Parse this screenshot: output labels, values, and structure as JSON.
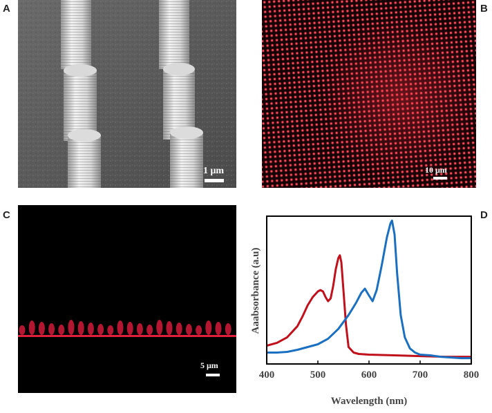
{
  "panels": {
    "a": {
      "letter": "A",
      "scale_label": "1 μm"
    },
    "b": {
      "letter": "B",
      "scale_label": "10 μm"
    },
    "c": {
      "letter": "C",
      "scale_label": "5 μm"
    },
    "d": {
      "letter": "D"
    }
  },
  "chart_data": {
    "type": "line",
    "xlabel": "Wavelength (nm)",
    "ylabel": "Aaabsorbance (a.u)",
    "xlim": [
      400,
      800
    ],
    "ylim": [
      0,
      1
    ],
    "xticks": [
      400,
      500,
      600,
      700,
      800
    ],
    "yticks_shown": false,
    "grid": false,
    "legend": "none",
    "series": [
      {
        "color": "#c0101c",
        "x": [
          400,
          420,
          440,
          460,
          470,
          480,
          490,
          500,
          505,
          510,
          515,
          520,
          525,
          530,
          535,
          540,
          543,
          546,
          550,
          555,
          560,
          570,
          580,
          600,
          650,
          700,
          750,
          800
        ],
        "y": [
          0.1,
          0.12,
          0.16,
          0.24,
          0.31,
          0.39,
          0.45,
          0.49,
          0.5,
          0.49,
          0.45,
          0.42,
          0.44,
          0.53,
          0.65,
          0.73,
          0.75,
          0.7,
          0.5,
          0.25,
          0.09,
          0.05,
          0.04,
          0.035,
          0.03,
          0.025,
          0.02,
          0.02
        ]
      },
      {
        "color": "#1a6fc0",
        "x": [
          400,
          420,
          440,
          460,
          480,
          500,
          520,
          540,
          560,
          575,
          585,
          592,
          600,
          607,
          615,
          625,
          635,
          642,
          645,
          650,
          655,
          662,
          670,
          680,
          690,
          700,
          720,
          740,
          760,
          780,
          800
        ],
        "y": [
          0.05,
          0.05,
          0.055,
          0.07,
          0.09,
          0.11,
          0.15,
          0.22,
          0.32,
          0.41,
          0.48,
          0.51,
          0.46,
          0.42,
          0.5,
          0.68,
          0.88,
          0.98,
          1.0,
          0.9,
          0.62,
          0.32,
          0.16,
          0.08,
          0.05,
          0.035,
          0.03,
          0.02,
          0.015,
          0.01,
          0.01
        ]
      }
    ]
  }
}
